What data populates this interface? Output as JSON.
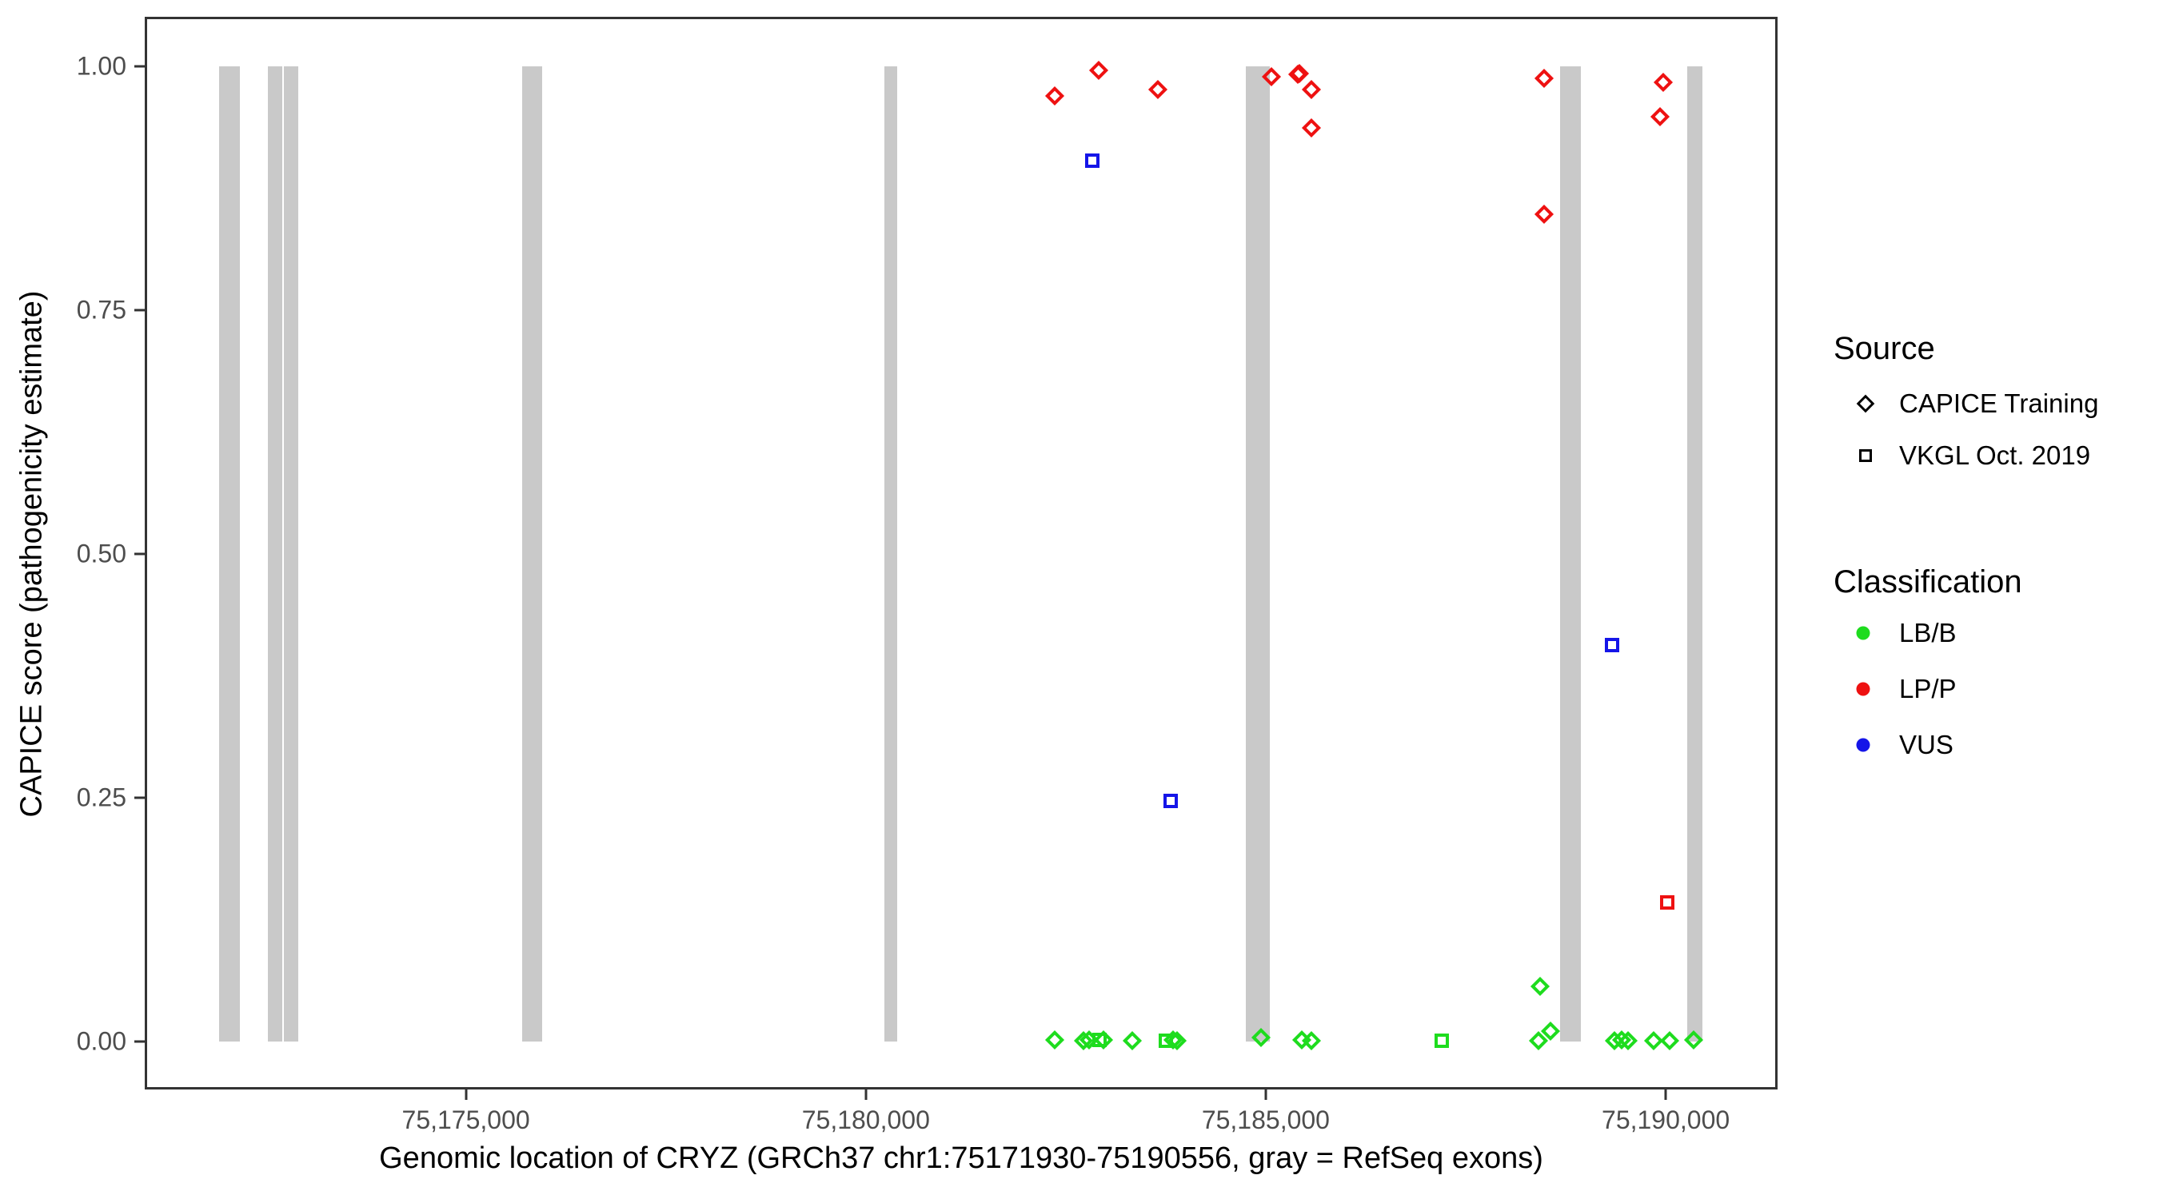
{
  "chart_data": {
    "type": "scatter",
    "title": "",
    "xlabel": "Genomic location of CRYZ (GRCh37 chr1:75171930-75190556, gray = RefSeq exons)",
    "ylabel": "CAPICE score (pathogenicity estimate)",
    "xlim": [
      75170995,
      75191389
    ],
    "ylim": [
      0,
      1
    ],
    "grid": "off",
    "legend_position": "right",
    "x_ticks": [
      {
        "value": 75175000,
        "label": "75,175,000"
      },
      {
        "value": 75180000,
        "label": "75,180,000"
      },
      {
        "value": 75185000,
        "label": "75,185,000"
      },
      {
        "value": 75190000,
        "label": "75,190,000"
      }
    ],
    "y_ticks": [
      {
        "value": 1.0,
        "label": "1.00"
      },
      {
        "value": 0.75,
        "label": "0.75"
      },
      {
        "value": 0.5,
        "label": "0.50"
      },
      {
        "value": 0.25,
        "label": "0.25"
      },
      {
        "value": 0.0,
        "label": "0.00"
      }
    ],
    "colors": {
      "LB/B": "#1edc1e",
      "LP/P": "#ee1111",
      "VUS": "#1515e8",
      "exon": "#c9c9c9"
    },
    "exons": [
      {
        "start": 75171915,
        "end": 75172175
      },
      {
        "start": 75172525,
        "end": 75172705
      },
      {
        "start": 75172725,
        "end": 75172905
      },
      {
        "start": 75175705,
        "end": 75175955
      },
      {
        "start": 75180235,
        "end": 75180395
      },
      {
        "start": 75184755,
        "end": 75185055
      },
      {
        "start": 75188675,
        "end": 75188935
      },
      {
        "start": 75190265,
        "end": 75190455
      }
    ],
    "points": [
      {
        "pos": 75182365,
        "score": 0.97,
        "source": "CAPICE Training",
        "classification": "LP/P"
      },
      {
        "pos": 75182915,
        "score": 0.996,
        "source": "CAPICE Training",
        "classification": "LP/P"
      },
      {
        "pos": 75183655,
        "score": 0.976,
        "source": "CAPICE Training",
        "classification": "LP/P"
      },
      {
        "pos": 75185075,
        "score": 0.989,
        "source": "CAPICE Training",
        "classification": "LP/P"
      },
      {
        "pos": 75185405,
        "score": 0.992,
        "source": "CAPICE Training",
        "classification": "LP/P"
      },
      {
        "pos": 75185425,
        "score": 0.993,
        "source": "CAPICE Training",
        "classification": "LP/P"
      },
      {
        "pos": 75185575,
        "score": 0.976,
        "source": "CAPICE Training",
        "classification": "LP/P"
      },
      {
        "pos": 75185575,
        "score": 0.937,
        "source": "CAPICE Training",
        "classification": "LP/P"
      },
      {
        "pos": 75188475,
        "score": 0.988,
        "source": "CAPICE Training",
        "classification": "LP/P"
      },
      {
        "pos": 75188475,
        "score": 0.848,
        "source": "CAPICE Training",
        "classification": "LP/P"
      },
      {
        "pos": 75189965,
        "score": 0.984,
        "source": "CAPICE Training",
        "classification": "LP/P"
      },
      {
        "pos": 75189925,
        "score": 0.948,
        "source": "CAPICE Training",
        "classification": "LP/P"
      },
      {
        "pos": 75190015,
        "score": 0.143,
        "source": "VKGL Oct. 2019",
        "classification": "LP/P"
      },
      {
        "pos": 75182835,
        "score": 0.903,
        "source": "VKGL Oct. 2019",
        "classification": "VUS"
      },
      {
        "pos": 75183815,
        "score": 0.247,
        "source": "VKGL Oct. 2019",
        "classification": "VUS"
      },
      {
        "pos": 75189325,
        "score": 0.407,
        "source": "VKGL Oct. 2019",
        "classification": "VUS"
      },
      {
        "pos": 75182925,
        "score": 0.002,
        "source": "VKGL Oct. 2019",
        "classification": "LB/B"
      },
      {
        "pos": 75183755,
        "score": 0.001,
        "source": "VKGL Oct. 2019",
        "classification": "LB/B"
      },
      {
        "pos": 75187195,
        "score": 0.001,
        "source": "VKGL Oct. 2019",
        "classification": "LB/B"
      },
      {
        "pos": 75182365,
        "score": 0.002,
        "source": "CAPICE Training",
        "classification": "LB/B"
      },
      {
        "pos": 75182725,
        "score": 0.001,
        "source": "CAPICE Training",
        "classification": "LB/B"
      },
      {
        "pos": 75182795,
        "score": 0.002,
        "source": "CAPICE Training",
        "classification": "LB/B"
      },
      {
        "pos": 75182975,
        "score": 0.002,
        "source": "CAPICE Training",
        "classification": "LB/B"
      },
      {
        "pos": 75183335,
        "score": 0.001,
        "source": "CAPICE Training",
        "classification": "LB/B"
      },
      {
        "pos": 75183845,
        "score": 0.002,
        "source": "CAPICE Training",
        "classification": "LB/B"
      },
      {
        "pos": 75183895,
        "score": 0.001,
        "source": "CAPICE Training",
        "classification": "LB/B"
      },
      {
        "pos": 75184945,
        "score": 0.004,
        "source": "CAPICE Training",
        "classification": "LB/B"
      },
      {
        "pos": 75185455,
        "score": 0.002,
        "source": "CAPICE Training",
        "classification": "LB/B"
      },
      {
        "pos": 75185575,
        "score": 0.001,
        "source": "CAPICE Training",
        "classification": "LB/B"
      },
      {
        "pos": 75188405,
        "score": 0.001,
        "source": "CAPICE Training",
        "classification": "LB/B"
      },
      {
        "pos": 75188425,
        "score": 0.057,
        "source": "CAPICE Training",
        "classification": "LB/B"
      },
      {
        "pos": 75188555,
        "score": 0.011,
        "source": "CAPICE Training",
        "classification": "LB/B"
      },
      {
        "pos": 75189355,
        "score": 0.001,
        "source": "CAPICE Training",
        "classification": "LB/B"
      },
      {
        "pos": 75189445,
        "score": 0.002,
        "source": "CAPICE Training",
        "classification": "LB/B"
      },
      {
        "pos": 75189525,
        "score": 0.001,
        "source": "CAPICE Training",
        "classification": "LB/B"
      },
      {
        "pos": 75189845,
        "score": 0.001,
        "source": "CAPICE Training",
        "classification": "LB/B"
      },
      {
        "pos": 75190045,
        "score": 0.001,
        "source": "CAPICE Training",
        "classification": "LB/B"
      },
      {
        "pos": 75190345,
        "score": 0.002,
        "source": "CAPICE Training",
        "classification": "LB/B"
      }
    ]
  },
  "legend": {
    "source": {
      "title": "Source",
      "items": [
        {
          "label": "CAPICE Training",
          "marker": "diamond"
        },
        {
          "label": "VKGL Oct. 2019",
          "marker": "square"
        }
      ]
    },
    "classification": {
      "title": "Classification",
      "items": [
        {
          "label": "LB/B",
          "color": "#1edc1e"
        },
        {
          "label": "LP/P",
          "color": "#ee1111"
        },
        {
          "label": "VUS",
          "color": "#1515e8"
        }
      ]
    }
  }
}
